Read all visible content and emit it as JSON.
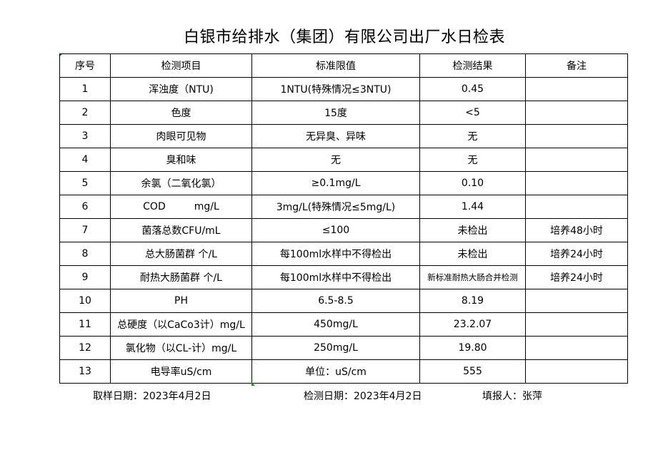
{
  "title": "白银市给排水（集团）有限公司出厂水日检表",
  "columns": [
    "序号",
    "检测项目",
    "标准限值",
    "检测结果",
    "备注"
  ],
  "rows": [
    {
      "no": "1",
      "item": "浑浊度（NTU)",
      "limit": "1NTU(特殊情况≤3NTU)",
      "result": "0.45",
      "note": ""
    },
    {
      "no": "2",
      "item": "色度",
      "limit": "15度",
      "result": "<5",
      "note": ""
    },
    {
      "no": "3",
      "item": "肉眼可见物",
      "limit": "无异臭、异味",
      "result": "无",
      "note": ""
    },
    {
      "no": "4",
      "item": "臭和味",
      "limit": "无",
      "result": "无",
      "note": ""
    },
    {
      "no": "5",
      "item": "余氯（二氧化氯）",
      "limit": "≥0.1mg/L",
      "result": "0.10",
      "note": ""
    },
    {
      "no": "6",
      "item": "COD         mg/L",
      "limit": "3mg/L(特殊情况≤5mg/L)",
      "result": "1.44",
      "note": ""
    },
    {
      "no": "7",
      "item": "菌落总数CFU/mL",
      "limit": "≤100",
      "result": "未检出",
      "note": "培养48小时"
    },
    {
      "no": "8",
      "item": "总大肠菌群 个/L",
      "limit": "每100ml水样中不得检出",
      "result": "未检出",
      "note": "培养24小时"
    },
    {
      "no": "9",
      "item": "耐热大肠菌群 个/L",
      "limit": "每100ml水样中不得检出",
      "result": "新标准耐热大肠合并检测",
      "note": "培养24小时"
    },
    {
      "no": "10",
      "item": "PH",
      "limit": "6.5-8.5",
      "result": "8.19",
      "note": ""
    },
    {
      "no": "11",
      "item": "总硬度（以CaCo3计）mg/L",
      "limit": "450mg/L",
      "result": "23.2.07",
      "note": ""
    },
    {
      "no": "12",
      "item": "氯化物（以CL-计）mg/L",
      "limit": "250mg/L",
      "result": "19.80",
      "note": ""
    },
    {
      "no": "13",
      "item": "电导率uS/cm",
      "limit": "单位：uS/cm",
      "result": "555",
      "note": ""
    }
  ],
  "footer": {
    "sampling_date": "取样日期：2023年4月2日",
    "test_date": "检测日期：2023年4月2日",
    "reporter": "填报人：张萍"
  }
}
